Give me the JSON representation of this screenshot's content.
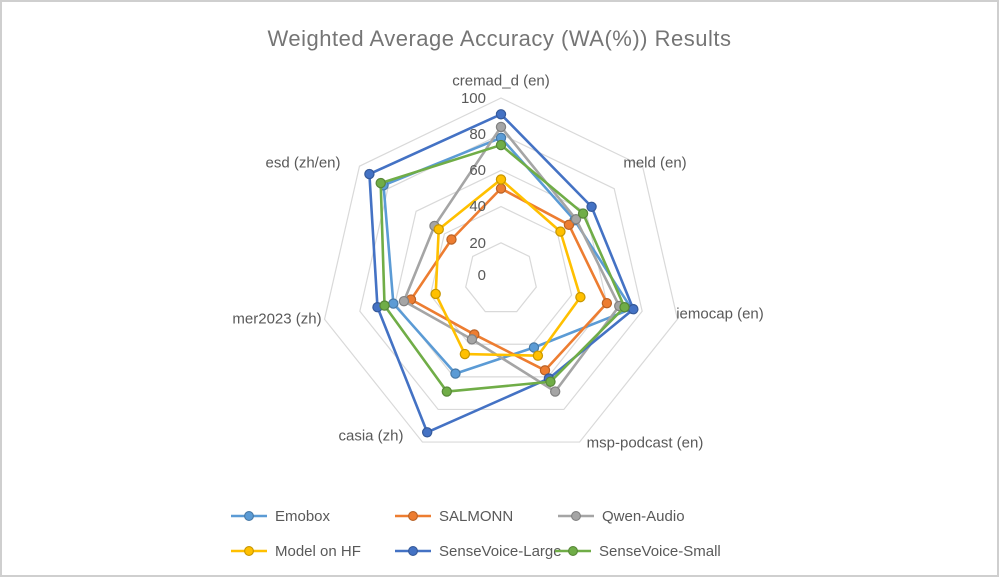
{
  "title": "Weighted Average Accuracy (WA(%)) Results",
  "chart_data": {
    "type": "radar",
    "title": "Weighted Average Accuracy (WA(%)) Results",
    "categories": [
      "cremad_d (en)",
      "meld (en)",
      "iemocap (en)",
      "msp-podcast (en)",
      "casia (zh)",
      "mer2023 (zh)",
      "esd  (zh/en)"
    ],
    "axis_range": [
      0,
      100
    ],
    "axis_ticks": [
      "100",
      "80",
      "60",
      "40",
      "20",
      "0"
    ],
    "grid": true,
    "legend_position": "bottom",
    "series": [
      {
        "name": "Emobox",
        "color": "#5B9BD5",
        "values": [
          78,
          52,
          74,
          42,
          58,
          61,
          83
        ]
      },
      {
        "name": "SALMONN",
        "color": "#ED7D31",
        "values": [
          50,
          48,
          60,
          56,
          34,
          51,
          35
        ]
      },
      {
        "name": "Qwen-Audio",
        "color": "#A5A5A5",
        "values": [
          84,
          53,
          67,
          69,
          37,
          55,
          47
        ]
      },
      {
        "name": "Model on HF",
        "color": "#FFC000",
        "values": [
          55,
          42,
          45,
          47,
          46,
          37,
          44
        ]
      },
      {
        "name": "SenseVoice-Large",
        "color": "#4472C4",
        "values": [
          91,
          64,
          75,
          61,
          94,
          70,
          93
        ]
      },
      {
        "name": "SenseVoice-Small",
        "color": "#70AD47",
        "values": [
          74,
          58,
          70,
          63,
          69,
          66,
          85
        ]
      }
    ]
  },
  "colors": {
    "title_text": "#757575",
    "label_text": "#595959",
    "gridline": "#D9D9D9",
    "background": "#FFFFFF",
    "frame_border": "#CFCFCF"
  }
}
